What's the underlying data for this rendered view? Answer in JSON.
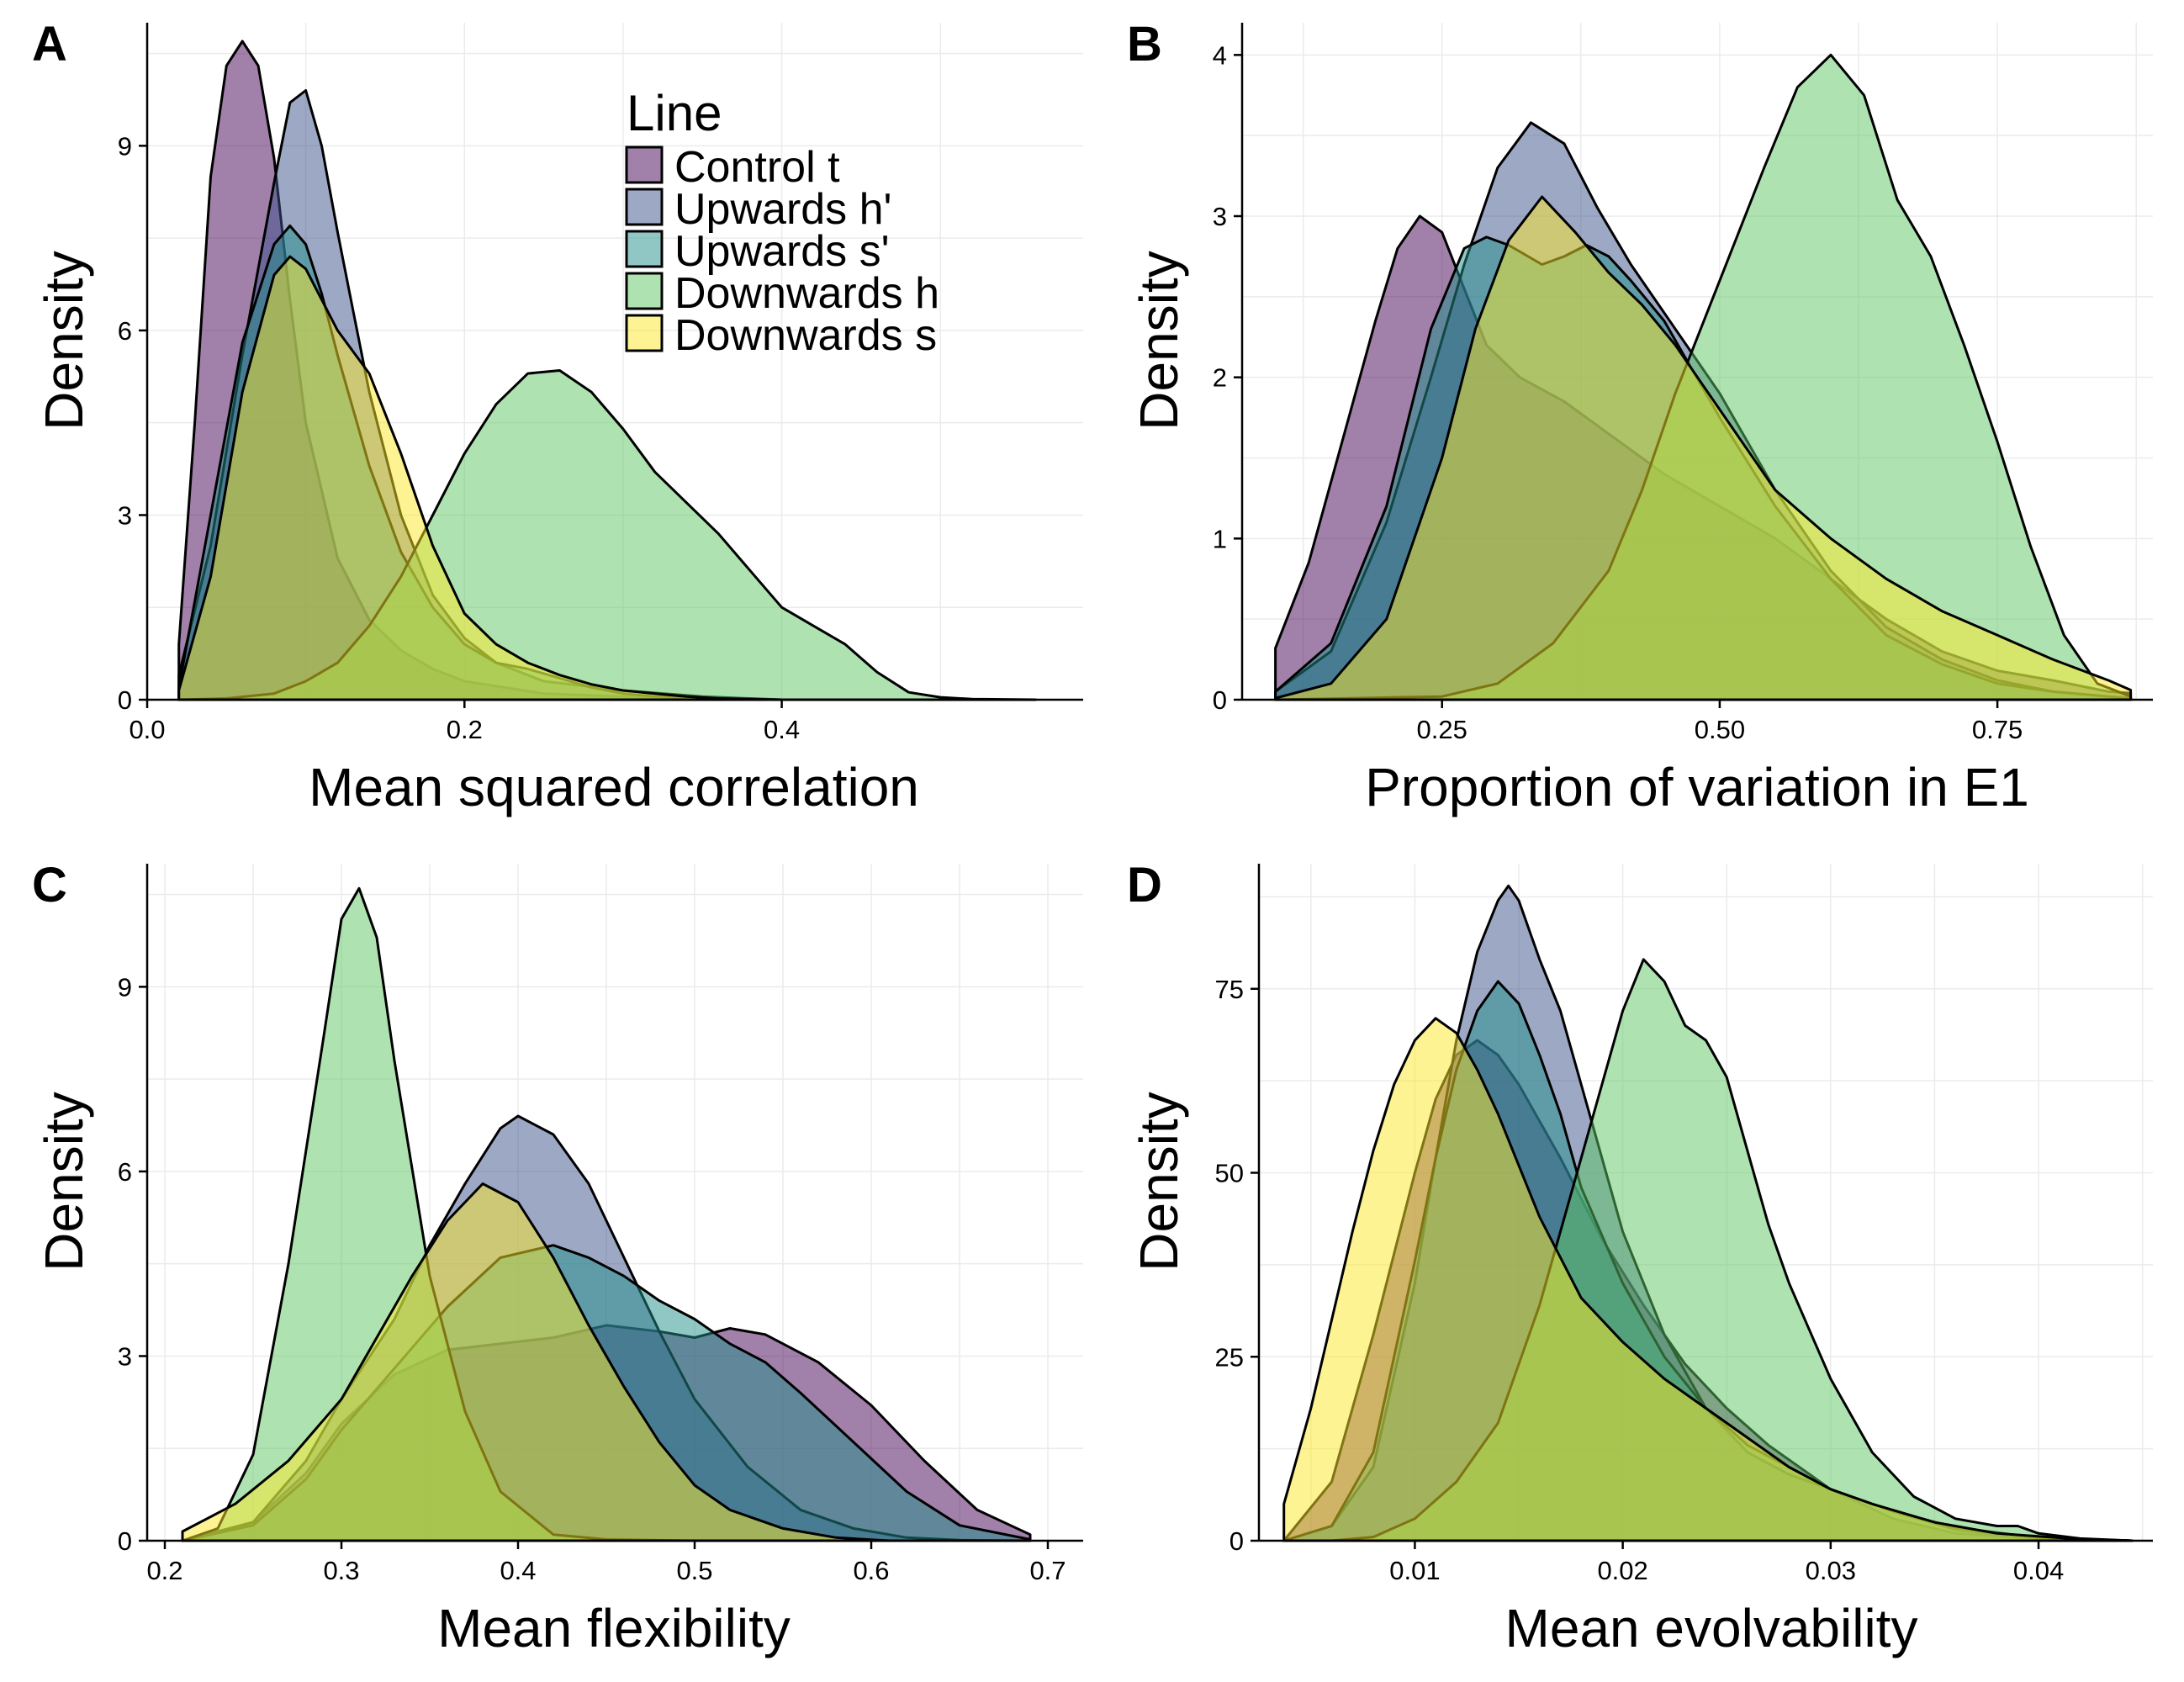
{
  "legend": {
    "title": "Line",
    "entries": [
      {
        "label": "Control t",
        "color": "#440154"
      },
      {
        "label": "Upwards h'",
        "color": "#3b528b"
      },
      {
        "label": "Upwards s'",
        "color": "#21908c"
      },
      {
        "label": "Downwards h",
        "color": "#5dc863"
      },
      {
        "label": "Downwards s",
        "color": "#fde725"
      }
    ]
  },
  "chart_data": [
    {
      "panel": "A",
      "type": "area",
      "xlabel": "Mean squared correlation",
      "ylabel": "Density",
      "xlim": [
        0.0,
        0.59
      ],
      "ylim": [
        0,
        11
      ],
      "grid": true,
      "legend_position": "top-right",
      "xticks": [
        0.0,
        0.2,
        0.4
      ],
      "xtick_labels": [
        "0.0",
        "0.2",
        "0.4"
      ],
      "yticks": [
        0,
        3,
        6,
        9
      ],
      "ytick_labels": [
        "0",
        "3",
        "6",
        "9"
      ],
      "series": [
        {
          "name": "Control t",
          "x": [
            0.02,
            0.03,
            0.04,
            0.05,
            0.06,
            0.07,
            0.08,
            0.09,
            0.1,
            0.12,
            0.14,
            0.16,
            0.18,
            0.2,
            0.25,
            0.3,
            0.35,
            0.4
          ],
          "y": [
            0.9,
            4.5,
            8.5,
            10.3,
            10.7,
            10.3,
            8.8,
            6.5,
            4.5,
            2.3,
            1.3,
            0.8,
            0.5,
            0.3,
            0.1,
            0.05,
            0,
            0
          ]
        },
        {
          "name": "Upwards h'",
          "x": [
            0.02,
            0.04,
            0.06,
            0.08,
            0.09,
            0.1,
            0.11,
            0.12,
            0.13,
            0.14,
            0.16,
            0.18,
            0.2,
            0.22,
            0.25,
            0.3,
            0.35,
            0.4
          ],
          "y": [
            0.4,
            2.5,
            5.6,
            8.4,
            9.7,
            9.9,
            9.0,
            7.6,
            6.3,
            5.0,
            3.0,
            1.7,
            1.0,
            0.6,
            0.3,
            0.15,
            0.05,
            0
          ]
        },
        {
          "name": "Upwards s'",
          "x": [
            0.02,
            0.04,
            0.06,
            0.08,
            0.09,
            0.1,
            0.11,
            0.12,
            0.14,
            0.16,
            0.18,
            0.2,
            0.22,
            0.24,
            0.26,
            0.28,
            0.3,
            0.32,
            0.35,
            0.38,
            0.4
          ],
          "y": [
            0.2,
            3.0,
            5.8,
            7.4,
            7.7,
            7.4,
            6.6,
            5.6,
            3.8,
            2.4,
            1.5,
            0.9,
            0.6,
            0.5,
            0.35,
            0.2,
            0.1,
            0.05,
            0.02,
            0.01,
            0
          ]
        },
        {
          "name": "Downwards h",
          "x": [
            0.02,
            0.05,
            0.08,
            0.1,
            0.12,
            0.14,
            0.16,
            0.18,
            0.2,
            0.22,
            0.24,
            0.26,
            0.28,
            0.3,
            0.32,
            0.34,
            0.36,
            0.38,
            0.4,
            0.42,
            0.44,
            0.46,
            0.48,
            0.5,
            0.52,
            0.56
          ],
          "y": [
            0,
            0.02,
            0.1,
            0.3,
            0.6,
            1.2,
            2.0,
            3.0,
            4.0,
            4.8,
            5.3,
            5.35,
            5.0,
            4.4,
            3.7,
            3.2,
            2.7,
            2.1,
            1.5,
            1.2,
            0.9,
            0.45,
            0.12,
            0.04,
            0.01,
            0
          ]
        },
        {
          "name": "Downwards s",
          "x": [
            0.02,
            0.04,
            0.06,
            0.08,
            0.09,
            0.1,
            0.12,
            0.14,
            0.16,
            0.18,
            0.2,
            0.22,
            0.24,
            0.26,
            0.28,
            0.3,
            0.32,
            0.34,
            0.36,
            0.38,
            0.4
          ],
          "y": [
            0.15,
            2.0,
            5.0,
            6.9,
            7.2,
            7.0,
            6.0,
            5.3,
            4.0,
            2.5,
            1.4,
            0.9,
            0.6,
            0.4,
            0.25,
            0.15,
            0.1,
            0.05,
            0.02,
            0.01,
            0
          ]
        }
      ]
    },
    {
      "panel": "B",
      "type": "area",
      "xlabel": "Proportion of variation in  E1",
      "ylabel": "Density",
      "xlim": [
        0.07,
        0.89
      ],
      "ylim": [
        0,
        4.2
      ],
      "grid": true,
      "xticks": [
        0.25,
        0.5,
        0.75
      ],
      "xtick_labels": [
        "0.25",
        "0.50",
        "0.75"
      ],
      "yticks": [
        0,
        1,
        2,
        3,
        4
      ],
      "ytick_labels": [
        "0",
        "1",
        "2",
        "3",
        "4"
      ],
      "series": [
        {
          "name": "Control t",
          "x": [
            0.1,
            0.13,
            0.16,
            0.19,
            0.21,
            0.23,
            0.25,
            0.27,
            0.29,
            0.32,
            0.36,
            0.4,
            0.45,
            0.5,
            0.55,
            0.6,
            0.65,
            0.7,
            0.75,
            0.8,
            0.85,
            0.87
          ],
          "y": [
            0.32,
            0.85,
            1.6,
            2.35,
            2.8,
            3.0,
            2.9,
            2.55,
            2.2,
            2.0,
            1.85,
            1.65,
            1.4,
            1.2,
            1.0,
            0.75,
            0.5,
            0.3,
            0.18,
            0.12,
            0.05,
            0.04
          ]
        },
        {
          "name": "Upwards h'",
          "x": [
            0.1,
            0.15,
            0.2,
            0.24,
            0.27,
            0.3,
            0.33,
            0.36,
            0.39,
            0.42,
            0.45,
            0.5,
            0.55,
            0.6,
            0.65,
            0.7,
            0.75,
            0.8,
            0.85,
            0.87
          ],
          "y": [
            0.05,
            0.3,
            1.1,
            2.0,
            2.7,
            3.3,
            3.58,
            3.45,
            3.05,
            2.7,
            2.4,
            1.9,
            1.3,
            0.8,
            0.45,
            0.25,
            0.12,
            0.05,
            0.02,
            0.01
          ]
        },
        {
          "name": "Upwards s'",
          "x": [
            0.1,
            0.15,
            0.2,
            0.24,
            0.27,
            0.29,
            0.31,
            0.34,
            0.36,
            0.38,
            0.4,
            0.42,
            0.45,
            0.5,
            0.55,
            0.6,
            0.65,
            0.7,
            0.75,
            0.8,
            0.85,
            0.87
          ],
          "y": [
            0.05,
            0.35,
            1.2,
            2.3,
            2.8,
            2.87,
            2.82,
            2.7,
            2.75,
            2.82,
            2.75,
            2.6,
            2.35,
            1.75,
            1.2,
            0.75,
            0.4,
            0.22,
            0.1,
            0.05,
            0.02,
            0.01
          ]
        },
        {
          "name": "Downwards h",
          "x": [
            0.1,
            0.25,
            0.3,
            0.35,
            0.4,
            0.43,
            0.46,
            0.5,
            0.54,
            0.57,
            0.6,
            0.63,
            0.66,
            0.69,
            0.72,
            0.75,
            0.78,
            0.81,
            0.84,
            0.87
          ],
          "y": [
            0,
            0.02,
            0.1,
            0.35,
            0.8,
            1.3,
            1.9,
            2.6,
            3.3,
            3.8,
            4.0,
            3.75,
            3.1,
            2.75,
            2.2,
            1.6,
            0.95,
            0.4,
            0.1,
            0.02
          ]
        },
        {
          "name": "Downwards s",
          "x": [
            0.1,
            0.15,
            0.2,
            0.25,
            0.28,
            0.31,
            0.34,
            0.37,
            0.4,
            0.43,
            0.46,
            0.5,
            0.55,
            0.6,
            0.65,
            0.7,
            0.75,
            0.8,
            0.85,
            0.87
          ],
          "y": [
            0.01,
            0.1,
            0.5,
            1.5,
            2.3,
            2.85,
            3.12,
            2.9,
            2.65,
            2.45,
            2.2,
            1.8,
            1.3,
            1.0,
            0.75,
            0.55,
            0.4,
            0.25,
            0.12,
            0.06
          ]
        }
      ]
    },
    {
      "panel": "C",
      "type": "area",
      "xlabel": "Mean flexibility",
      "ylabel": "Density",
      "xlim": [
        0.19,
        0.72
      ],
      "ylim": [
        0,
        11
      ],
      "grid": true,
      "xticks": [
        0.2,
        0.3,
        0.4,
        0.5,
        0.6,
        0.7
      ],
      "xtick_labels": [
        "0.2",
        "0.3",
        "0.4",
        "0.5",
        "0.6",
        "0.7"
      ],
      "yticks": [
        0,
        3,
        6,
        9
      ],
      "ytick_labels": [
        "0",
        "3",
        "6",
        "9"
      ],
      "series": [
        {
          "name": "Control t",
          "x": [
            0.21,
            0.25,
            0.28,
            0.3,
            0.33,
            0.36,
            0.39,
            0.42,
            0.45,
            0.48,
            0.5,
            0.52,
            0.54,
            0.57,
            0.6,
            0.63,
            0.66,
            0.69
          ],
          "y": [
            0,
            0.3,
            1.1,
            1.9,
            2.7,
            3.1,
            3.2,
            3.3,
            3.5,
            3.4,
            3.3,
            3.45,
            3.35,
            2.9,
            2.2,
            1.3,
            0.5,
            0.1
          ]
        },
        {
          "name": "Upwards h'",
          "x": [
            0.21,
            0.25,
            0.28,
            0.3,
            0.33,
            0.35,
            0.37,
            0.39,
            0.4,
            0.42,
            0.44,
            0.46,
            0.48,
            0.5,
            0.53,
            0.56,
            0.59,
            0.62,
            0.65,
            0.69
          ],
          "y": [
            0,
            0.3,
            1.3,
            2.3,
            3.6,
            4.8,
            5.8,
            6.7,
            6.9,
            6.6,
            5.8,
            4.6,
            3.4,
            2.3,
            1.2,
            0.5,
            0.2,
            0.05,
            0.01,
            0
          ]
        },
        {
          "name": "Upwards s'",
          "x": [
            0.21,
            0.25,
            0.28,
            0.3,
            0.33,
            0.36,
            0.39,
            0.42,
            0.44,
            0.46,
            0.48,
            0.5,
            0.52,
            0.54,
            0.56,
            0.59,
            0.62,
            0.65,
            0.69
          ],
          "y": [
            0,
            0.25,
            1.0,
            1.8,
            2.8,
            3.8,
            4.6,
            4.8,
            4.6,
            4.3,
            3.9,
            3.6,
            3.2,
            2.9,
            2.4,
            1.6,
            0.8,
            0.25,
            0.02
          ]
        },
        {
          "name": "Downwards h",
          "x": [
            0.21,
            0.23,
            0.25,
            0.27,
            0.29,
            0.3,
            0.31,
            0.32,
            0.33,
            0.35,
            0.37,
            0.39,
            0.42,
            0.45,
            0.5
          ],
          "y": [
            0,
            0.2,
            1.4,
            4.5,
            8.2,
            10.1,
            10.6,
            9.8,
            7.8,
            4.3,
            2.1,
            0.8,
            0.1,
            0.02,
            0
          ]
        },
        {
          "name": "Downwards s",
          "x": [
            0.21,
            0.24,
            0.27,
            0.3,
            0.32,
            0.34,
            0.36,
            0.38,
            0.4,
            0.42,
            0.44,
            0.46,
            0.48,
            0.5,
            0.52,
            0.55,
            0.58,
            0.61
          ],
          "y": [
            0.15,
            0.6,
            1.3,
            2.3,
            3.3,
            4.3,
            5.2,
            5.8,
            5.5,
            4.6,
            3.5,
            2.5,
            1.6,
            0.9,
            0.5,
            0.2,
            0.05,
            0
          ]
        }
      ]
    },
    {
      "panel": "D",
      "type": "area",
      "xlabel": "Mean evolvability",
      "ylabel": "Density",
      "xlim": [
        0.0025,
        0.0455
      ],
      "ylim": [
        0,
        92
      ],
      "grid": true,
      "xticks": [
        0.01,
        0.02,
        0.03,
        0.04
      ],
      "xtick_labels": [
        "0.01",
        "0.02",
        "0.03",
        "0.04"
      ],
      "yticks": [
        0,
        25,
        50,
        75
      ],
      "ytick_labels": [
        "0",
        "25",
        "50",
        "75"
      ],
      "series": [
        {
          "name": "Control t",
          "x": [
            0.0037,
            0.006,
            0.008,
            0.01,
            0.011,
            0.012,
            0.013,
            0.014,
            0.015,
            0.017,
            0.019,
            0.021,
            0.023,
            0.025,
            0.027,
            0.03,
            0.033,
            0.036,
            0.04,
            0.0445
          ],
          "y": [
            0,
            8,
            28,
            50,
            60,
            66,
            68,
            66,
            62,
            52,
            41,
            32,
            24,
            18,
            13,
            7,
            3,
            1,
            0.3,
            0
          ]
        },
        {
          "name": "Upwards h'",
          "x": [
            0.0037,
            0.006,
            0.008,
            0.01,
            0.011,
            0.012,
            0.013,
            0.014,
            0.0145,
            0.015,
            0.016,
            0.017,
            0.018,
            0.019,
            0.02,
            0.022,
            0.024,
            0.026,
            0.028,
            0.03,
            0.033,
            0.036,
            0.04,
            0.0445
          ],
          "y": [
            0,
            2,
            10,
            35,
            52,
            68,
            80,
            87,
            89,
            87,
            79,
            72,
            62,
            52,
            42,
            28,
            18,
            12,
            9,
            7,
            4,
            1.5,
            0.3,
            0
          ]
        },
        {
          "name": "Upwards s'",
          "x": [
            0.0037,
            0.006,
            0.008,
            0.01,
            0.011,
            0.012,
            0.013,
            0.014,
            0.015,
            0.016,
            0.017,
            0.018,
            0.02,
            0.022,
            0.024,
            0.026,
            0.028,
            0.03,
            0.033,
            0.036,
            0.04,
            0.0445
          ],
          "y": [
            0,
            2,
            12,
            38,
            52,
            64,
            72,
            76,
            73,
            66,
            58,
            48,
            35,
            25,
            18,
            13,
            10,
            7,
            4,
            1.8,
            0.4,
            0
          ]
        },
        {
          "name": "Downwards h",
          "x": [
            0.0037,
            0.006,
            0.008,
            0.01,
            0.012,
            0.014,
            0.016,
            0.018,
            0.02,
            0.021,
            0.022,
            0.023,
            0.024,
            0.025,
            0.026,
            0.027,
            0.028,
            0.03,
            0.032,
            0.034,
            0.036,
            0.038,
            0.039,
            0.04,
            0.042,
            0.0445
          ],
          "y": [
            0,
            0,
            0.5,
            3,
            8,
            16,
            32,
            52,
            72,
            79,
            76,
            70,
            68,
            63,
            53,
            43,
            35,
            22,
            12,
            6,
            3,
            2,
            2,
            1,
            0.3,
            0
          ]
        },
        {
          "name": "Downwards s",
          "x": [
            0.0037,
            0.005,
            0.006,
            0.007,
            0.008,
            0.009,
            0.01,
            0.011,
            0.012,
            0.013,
            0.014,
            0.015,
            0.016,
            0.018,
            0.02,
            0.022,
            0.024,
            0.026,
            0.028,
            0.03,
            0.032,
            0.035,
            0.038,
            0.042,
            0.0445
          ],
          "y": [
            5,
            18,
            30,
            42,
            53,
            62,
            68,
            71,
            69,
            64,
            58,
            51,
            44,
            33,
            27,
            22,
            18,
            14,
            10,
            7,
            5,
            2.5,
            1,
            0.2,
            0
          ]
        }
      ]
    }
  ]
}
